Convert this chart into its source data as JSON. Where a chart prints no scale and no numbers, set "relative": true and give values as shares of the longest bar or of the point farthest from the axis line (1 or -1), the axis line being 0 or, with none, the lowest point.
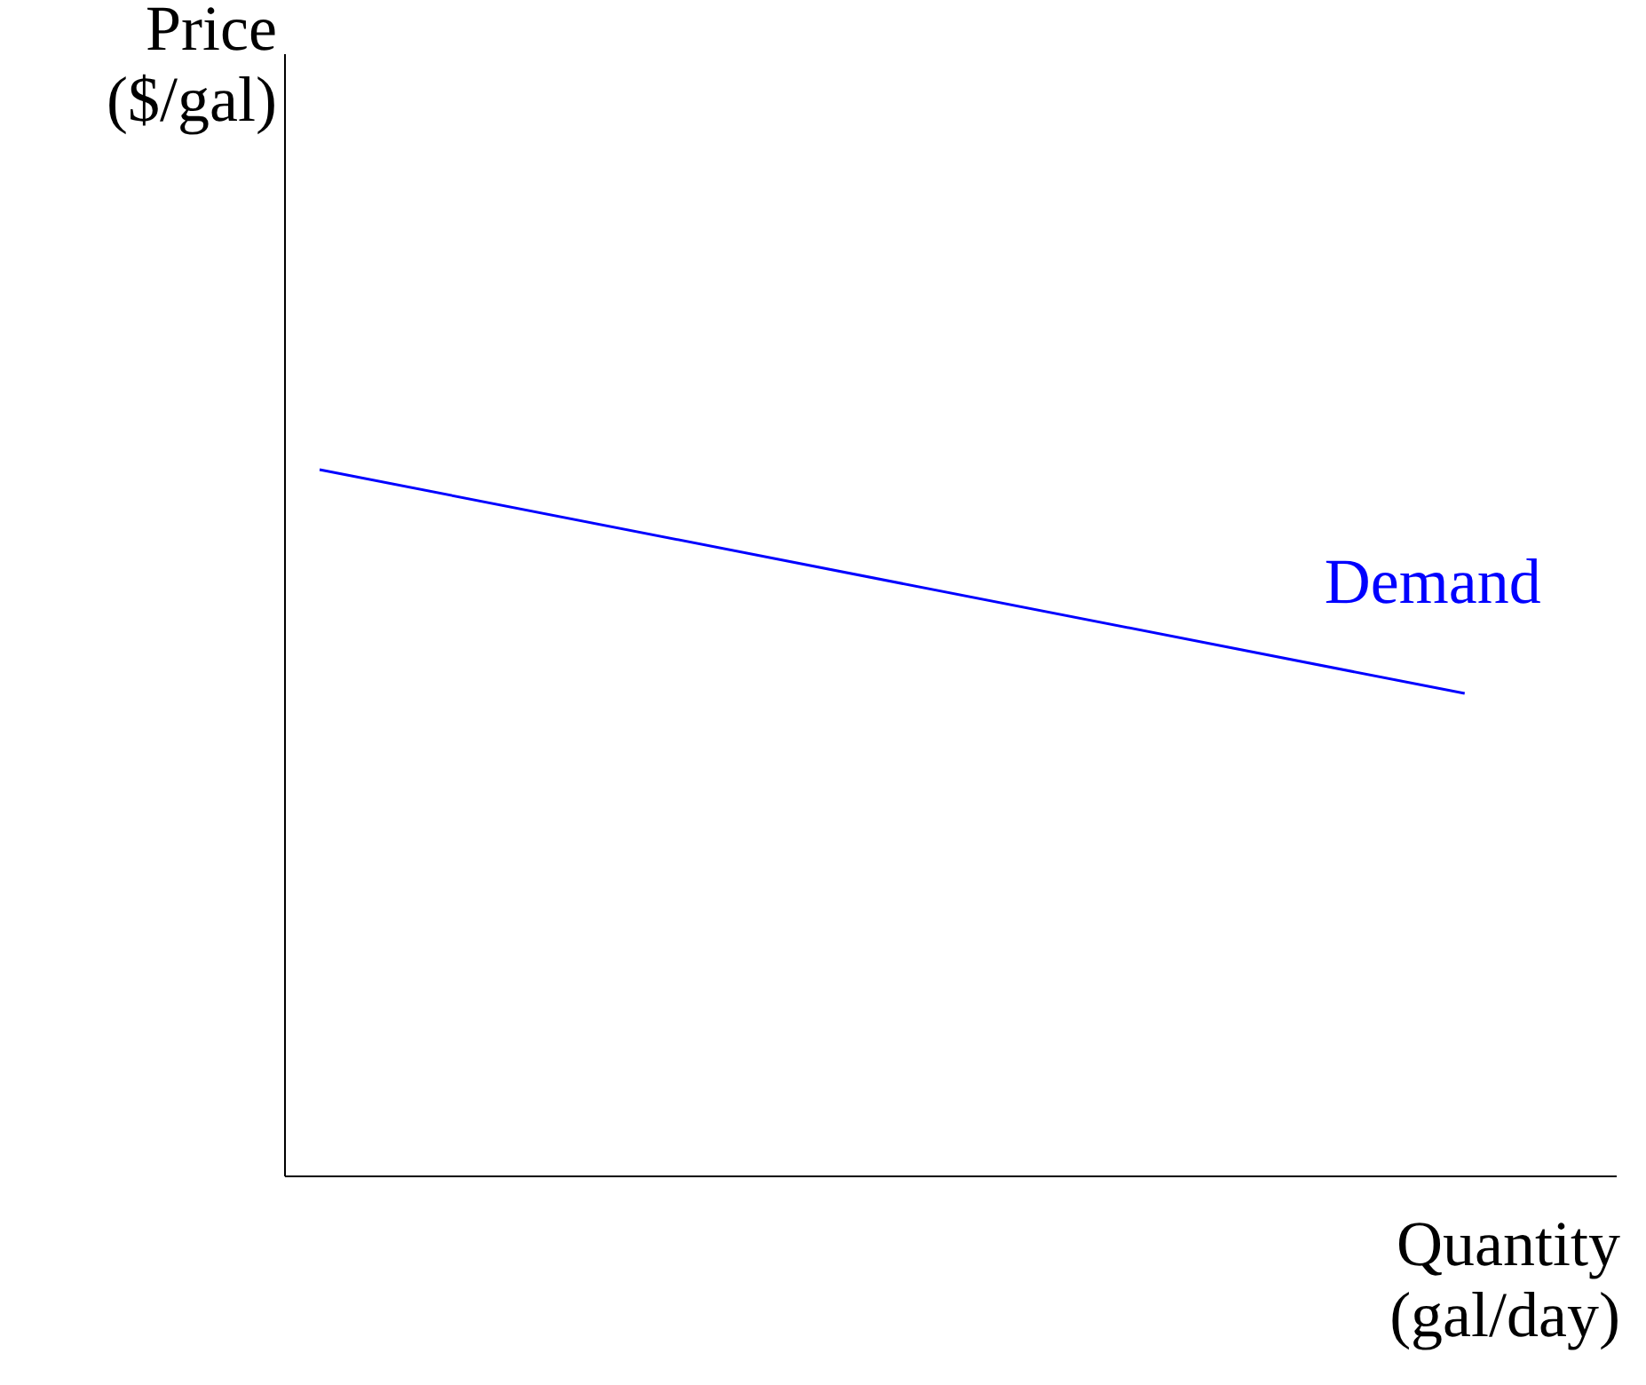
{
  "chart_data": {
    "type": "line",
    "relative": true,
    "xlabel": "Quantity (gal/day)",
    "annotations": [
      "Price ($/gal)"
    ],
    "categories": [
      null,
      null
    ],
    "marker": "none",
    "line_style": "solid",
    "series": [
      {
        "name": "Demand",
        "color": "#0000ff",
        "values": [
          1,
          0.683
        ]
      }
    ]
  }
}
